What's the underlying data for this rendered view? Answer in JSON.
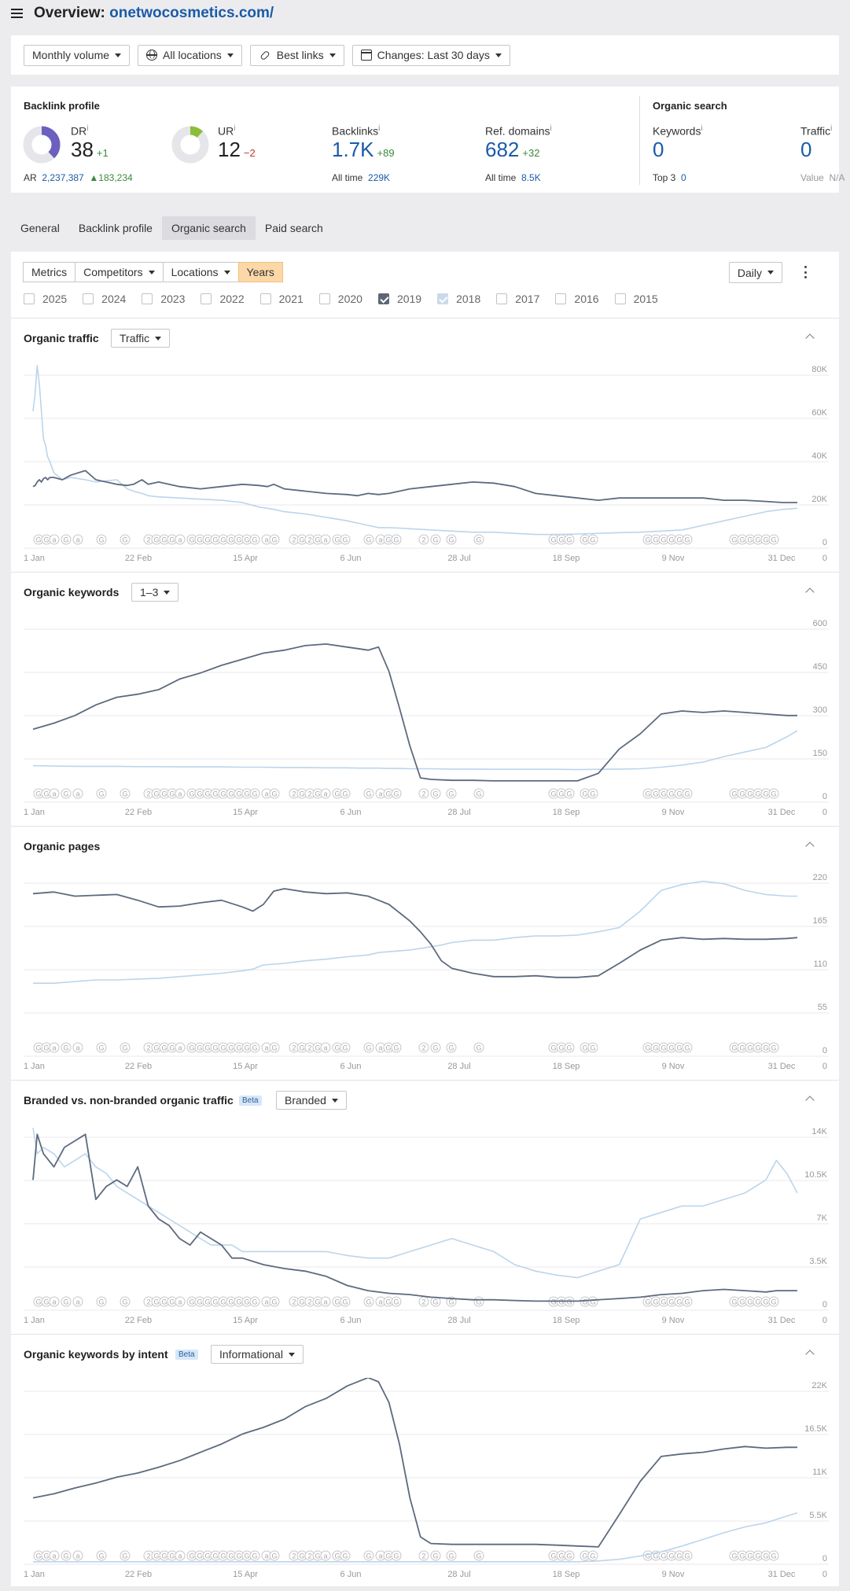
{
  "header": {
    "title_prefix": "Overview:",
    "domain": "onetwocosmetics.com/"
  },
  "filters": [
    {
      "label": "Monthly volume",
      "icon": ""
    },
    {
      "label": "All locations",
      "icon": "globe-icon"
    },
    {
      "label": "Best links",
      "icon": "link-icon"
    },
    {
      "label": "Changes: Last 30 days",
      "icon": "calendar-icon"
    }
  ],
  "backlink_profile": {
    "title": "Backlink profile",
    "dr": {
      "label": "DR",
      "value": "38",
      "change": "+1",
      "donut_fraction": 0.38
    },
    "ar": {
      "label": "AR",
      "value": "2,237,387",
      "change": "183,234"
    },
    "ur": {
      "label": "UR",
      "value": "12",
      "change": "−2",
      "donut_fraction": 0.12
    },
    "backlinks": {
      "label": "Backlinks",
      "value": "1.7K",
      "change": "+89",
      "all_time_label": "All time",
      "all_time": "229K"
    },
    "ref_domains": {
      "label": "Ref. domains",
      "value": "682",
      "change": "+32",
      "all_time_label": "All time",
      "all_time": "8.5K"
    }
  },
  "organic_search": {
    "title": "Organic search",
    "keywords": {
      "label": "Keywords",
      "value": "0",
      "sub_label": "Top 3",
      "sub_value": "0"
    },
    "traffic": {
      "label": "Traffic",
      "value": "0",
      "sub_label": "Value",
      "sub_value": "N/A"
    }
  },
  "info_mark": "i",
  "tabs": [
    "General",
    "Backlink profile",
    "Organic search",
    "Paid search"
  ],
  "active_tab": 2,
  "controls": {
    "metrics": "Metrics",
    "competitors": "Competitors",
    "locations": "Locations",
    "years": "Years",
    "interval": "Daily"
  },
  "years": [
    {
      "year": "2025",
      "state": "off"
    },
    {
      "year": "2024",
      "state": "off"
    },
    {
      "year": "2023",
      "state": "off"
    },
    {
      "year": "2022",
      "state": "off"
    },
    {
      "year": "2021",
      "state": "off"
    },
    {
      "year": "2020",
      "state": "off"
    },
    {
      "year": "2019",
      "state": "on"
    },
    {
      "year": "2018",
      "state": "light"
    },
    {
      "year": "2017",
      "state": "off"
    },
    {
      "year": "2016",
      "state": "off"
    },
    {
      "year": "2015",
      "state": "off"
    }
  ],
  "colors": {
    "series_2019": "#5d6a7e",
    "series_2018": "#bcd5ea",
    "grid": "#e8e8ec",
    "marker": "#c6c6cc"
  },
  "x_ticks": [
    "1 Jan",
    "22 Feb",
    "15 Apr",
    "6 Jun",
    "28 Jul",
    "18 Sep",
    "9 Nov",
    "31 Dec"
  ],
  "update_markers": [
    "G",
    "G",
    "a",
    "G",
    "a",
    "G",
    "G",
    "2",
    "G",
    "G",
    "G",
    "a",
    "G",
    "G",
    "G",
    "G",
    "G",
    "G",
    "G",
    "G",
    "G",
    "a",
    "G",
    "2",
    "G",
    "2",
    "G",
    "a",
    "G",
    "G",
    "G",
    "a",
    "G",
    "G",
    "2",
    "G",
    "G",
    "G"
  ],
  "chart_data": [
    {
      "type": "line",
      "title": "Organic traffic",
      "dropdown": "Traffic",
      "y_ticks": [
        "80K",
        "60K",
        "40K",
        "20K",
        "0"
      ],
      "ylim": [
        0,
        80000
      ],
      "x": [
        0,
        1,
        2,
        3,
        4,
        5,
        6,
        7,
        8,
        10,
        14,
        18,
        25,
        30,
        40,
        45,
        48,
        52,
        55,
        60,
        70,
        80,
        90,
        100,
        108,
        112,
        115,
        120,
        130,
        140,
        150,
        155,
        160,
        165,
        170,
        175,
        180,
        190,
        200,
        210,
        220,
        230,
        240,
        250,
        260,
        270,
        280,
        290,
        300,
        310,
        320,
        330,
        340,
        350,
        358,
        365
      ],
      "series": [
        {
          "name": "2019",
          "values": [
            27000,
            27500,
            29000,
            30000,
            29000,
            30500,
            31000,
            30000,
            31000,
            31000,
            30000,
            32000,
            34000,
            30000,
            28000,
            27500,
            28000,
            30000,
            28000,
            29000,
            27000,
            26000,
            27000,
            28000,
            27500,
            27000,
            28000,
            26000,
            25000,
            24000,
            23500,
            23000,
            24000,
            23500,
            24000,
            25000,
            26000,
            27000,
            28000,
            29000,
            28500,
            27000,
            24000,
            23000,
            22000,
            21000,
            22000,
            22000,
            22000,
            22000,
            22000,
            21000,
            21000,
            20500,
            20000,
            20000
          ]
        },
        {
          "name": "2018",
          "values": [
            60000,
            68000,
            80000,
            72000,
            60000,
            48000,
            45000,
            40000,
            38000,
            33000,
            30000,
            31000,
            30000,
            29000,
            30000,
            26000,
            25000,
            24000,
            23000,
            22500,
            22000,
            21500,
            21000,
            20000,
            18000,
            17500,
            17000,
            16000,
            15000,
            13500,
            12000,
            11000,
            10000,
            9000,
            9000,
            8800,
            8500,
            8000,
            7500,
            7000,
            7000,
            6500,
            6000,
            6000,
            6200,
            6500,
            6800,
            7000,
            7500,
            8000,
            10000,
            12000,
            14000,
            16000,
            17000,
            17500
          ]
        }
      ]
    },
    {
      "type": "line",
      "title": "Organic keywords",
      "dropdown": "1–3",
      "y_ticks": [
        "600",
        "450",
        "300",
        "150",
        "0"
      ],
      "ylim": [
        0,
        600
      ],
      "x": [
        0,
        10,
        20,
        30,
        40,
        50,
        60,
        70,
        80,
        90,
        100,
        110,
        120,
        130,
        140,
        150,
        155,
        160,
        165,
        170,
        175,
        180,
        185,
        190,
        200,
        210,
        220,
        230,
        240,
        250,
        260,
        270,
        280,
        290,
        300,
        310,
        320,
        330,
        340,
        350,
        360,
        365
      ],
      "series": [
        {
          "name": "2019",
          "values": [
            240,
            260,
            285,
            320,
            345,
            355,
            370,
            405,
            425,
            450,
            470,
            490,
            500,
            515,
            520,
            510,
            505,
            500,
            510,
            430,
            310,
            185,
            80,
            75,
            72,
            72,
            70,
            70,
            70,
            70,
            70,
            95,
            175,
            225,
            290,
            300,
            295,
            300,
            295,
            290,
            285,
            285
          ]
        },
        {
          "name": "2018",
          "values": [
            120,
            119,
            118,
            118,
            118,
            117,
            117,
            116,
            116,
            116,
            115,
            115,
            114,
            114,
            113,
            113,
            112,
            112,
            112,
            111,
            111,
            110,
            110,
            110,
            109,
            109,
            108,
            108,
            108,
            108,
            107,
            108,
            109,
            110,
            115,
            122,
            132,
            150,
            165,
            180,
            215,
            235
          ]
        }
      ]
    },
    {
      "type": "line",
      "title": "Organic pages",
      "y_ticks": [
        "220",
        "165",
        "110",
        "55",
        "0"
      ],
      "ylim": [
        0,
        220
      ],
      "x": [
        0,
        10,
        20,
        30,
        40,
        50,
        60,
        70,
        80,
        90,
        100,
        105,
        110,
        115,
        120,
        130,
        140,
        150,
        160,
        165,
        170,
        180,
        185,
        190,
        195,
        200,
        210,
        220,
        230,
        240,
        250,
        260,
        270,
        280,
        290,
        300,
        310,
        320,
        330,
        340,
        350,
        360,
        365
      ],
      "series": [
        {
          "name": "2019",
          "values": [
            196,
            198,
            193,
            194,
            195,
            188,
            180,
            181,
            185,
            188,
            180,
            175,
            183,
            199,
            202,
            198,
            196,
            197,
            193,
            188,
            183,
            163,
            150,
            135,
            115,
            106,
            100,
            96,
            96,
            97,
            95,
            95,
            97,
            112,
            128,
            140,
            143,
            141,
            142,
            141,
            141,
            142,
            143
          ]
        },
        {
          "name": "2018",
          "values": [
            88,
            88,
            90,
            92,
            92,
            93,
            94,
            96,
            98,
            100,
            103,
            105,
            110,
            111,
            112,
            115,
            117,
            120,
            122,
            125,
            126,
            128,
            130,
            132,
            134,
            137,
            140,
            140,
            143,
            145,
            145,
            146,
            150,
            155,
            175,
            200,
            207,
            211,
            208,
            200,
            195,
            193,
            193
          ]
        }
      ]
    },
    {
      "type": "line",
      "title": "Branded vs. non-branded organic traffic",
      "badge": "Beta",
      "dropdown": "Branded",
      "y_ticks": [
        "14K",
        "10.5K",
        "7K",
        "3.5K",
        "0"
      ],
      "ylim": [
        0,
        14000
      ],
      "x": [
        0,
        2,
        5,
        10,
        15,
        20,
        25,
        30,
        35,
        40,
        45,
        50,
        55,
        60,
        65,
        70,
        75,
        80,
        85,
        90,
        95,
        100,
        110,
        120,
        130,
        140,
        150,
        160,
        170,
        180,
        190,
        200,
        210,
        220,
        230,
        240,
        250,
        260,
        270,
        280,
        290,
        300,
        310,
        320,
        330,
        340,
        350,
        355,
        360,
        365
      ],
      "series": [
        {
          "name": "2019",
          "values": [
            10000,
            13500,
            12000,
            11000,
            12500,
            13000,
            13500,
            8500,
            9500,
            10000,
            9500,
            11000,
            8000,
            7000,
            6500,
            5500,
            5000,
            6000,
            5500,
            5000,
            4000,
            4000,
            3500,
            3200,
            3000,
            2600,
            1900,
            1500,
            1300,
            1200,
            1000,
            900,
            800,
            800,
            750,
            700,
            700,
            700,
            800,
            900,
            1000,
            1200,
            1300,
            1500,
            1600,
            1500,
            1400,
            1500,
            1500,
            1500
          ]
        },
        {
          "name": "2018",
          "values": [
            14000,
            12000,
            12500,
            12000,
            11000,
            11500,
            12000,
            11000,
            10500,
            9500,
            9000,
            8500,
            8000,
            7500,
            7000,
            6500,
            6000,
            5500,
            5000,
            5000,
            5000,
            4500,
            4500,
            4500,
            4500,
            4500,
            4200,
            4000,
            4000,
            4500,
            5000,
            5500,
            5000,
            4500,
            3500,
            3000,
            2700,
            2500,
            3000,
            3500,
            7000,
            7500,
            8000,
            8000,
            8500,
            9000,
            10000,
            11500,
            10500,
            9000
          ]
        }
      ]
    },
    {
      "type": "line",
      "title": "Organic keywords by intent",
      "badge": "Beta",
      "dropdown": "Informational",
      "y_ticks": [
        "22K",
        "16.5K",
        "11K",
        "5.5K",
        "0"
      ],
      "ylim": [
        0,
        22000
      ],
      "x": [
        0,
        10,
        20,
        30,
        40,
        50,
        60,
        70,
        80,
        90,
        100,
        110,
        120,
        130,
        140,
        150,
        160,
        165,
        170,
        175,
        180,
        185,
        190,
        200,
        210,
        220,
        230,
        240,
        250,
        260,
        270,
        280,
        290,
        300,
        310,
        320,
        330,
        340,
        350,
        360,
        365
      ],
      "series": [
        {
          "name": "2019",
          "values": [
            8000,
            8500,
            9200,
            9800,
            10500,
            11000,
            11700,
            12500,
            13500,
            14500,
            15700,
            16500,
            17500,
            19000,
            20000,
            21500,
            22500,
            22000,
            19500,
            14500,
            8000,
            3300,
            2500,
            2400,
            2400,
            2400,
            2400,
            2400,
            2300,
            2200,
            2100,
            6000,
            10000,
            13000,
            13300,
            13500,
            13900,
            14200,
            14000,
            14100,
            14100
          ]
        },
        {
          "name": "2018",
          "values": [
            300,
            300,
            300,
            300,
            300,
            300,
            300,
            300,
            300,
            300,
            300,
            300,
            300,
            300,
            300,
            300,
            300,
            300,
            300,
            300,
            300,
            300,
            300,
            300,
            300,
            300,
            300,
            300,
            300,
            300,
            400,
            600,
            1000,
            1500,
            2200,
            3000,
            3800,
            4500,
            5000,
            5800,
            6200
          ]
        }
      ]
    }
  ]
}
